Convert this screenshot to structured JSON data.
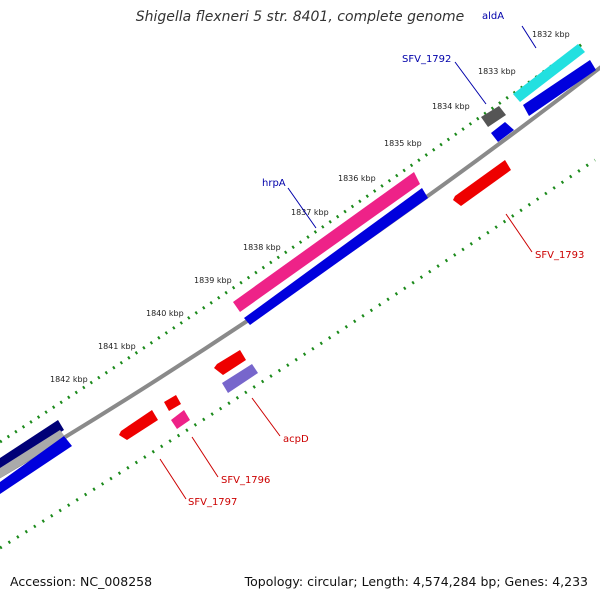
{
  "header": {
    "title": "Shigella flexneri 5 str. 8401, complete genome"
  },
  "footer": {
    "accession": "Accession: NC_008258",
    "summary": "Topology: circular; Length: 4,574,284 bp; Genes: 4,233"
  },
  "ticks": [
    "1832 kbp",
    "1833 kbp",
    "1834 kbp",
    "1835 kbp",
    "1836 kbp",
    "1837 kbp",
    "1838 kbp",
    "1839 kbp",
    "1840 kbp",
    "1841 kbp",
    "1842 kbp"
  ],
  "genes": [
    {
      "name": "aldA",
      "color": "#0000aa"
    },
    {
      "name": "SFV_1792",
      "color": "#0000aa"
    },
    {
      "name": "hrpA",
      "color": "#0000aa"
    },
    {
      "name": "SFV_1793",
      "color": "#cc0000"
    },
    {
      "name": "acpD",
      "color": "#cc0000"
    },
    {
      "name": "SFV_1796",
      "color": "#cc0000"
    },
    {
      "name": "SFV_1797",
      "color": "#cc0000"
    }
  ],
  "colors": {
    "backbone": "#888888",
    "tick_marks": "#1b7a1b",
    "forward_cds": "#0000dd",
    "reverse_cds": "#ee0000",
    "highlight_pink": "#ee2288",
    "highlight_cyan": "#22dddd",
    "pseudo_gray": "#555555",
    "lavender": "#7766cc"
  }
}
